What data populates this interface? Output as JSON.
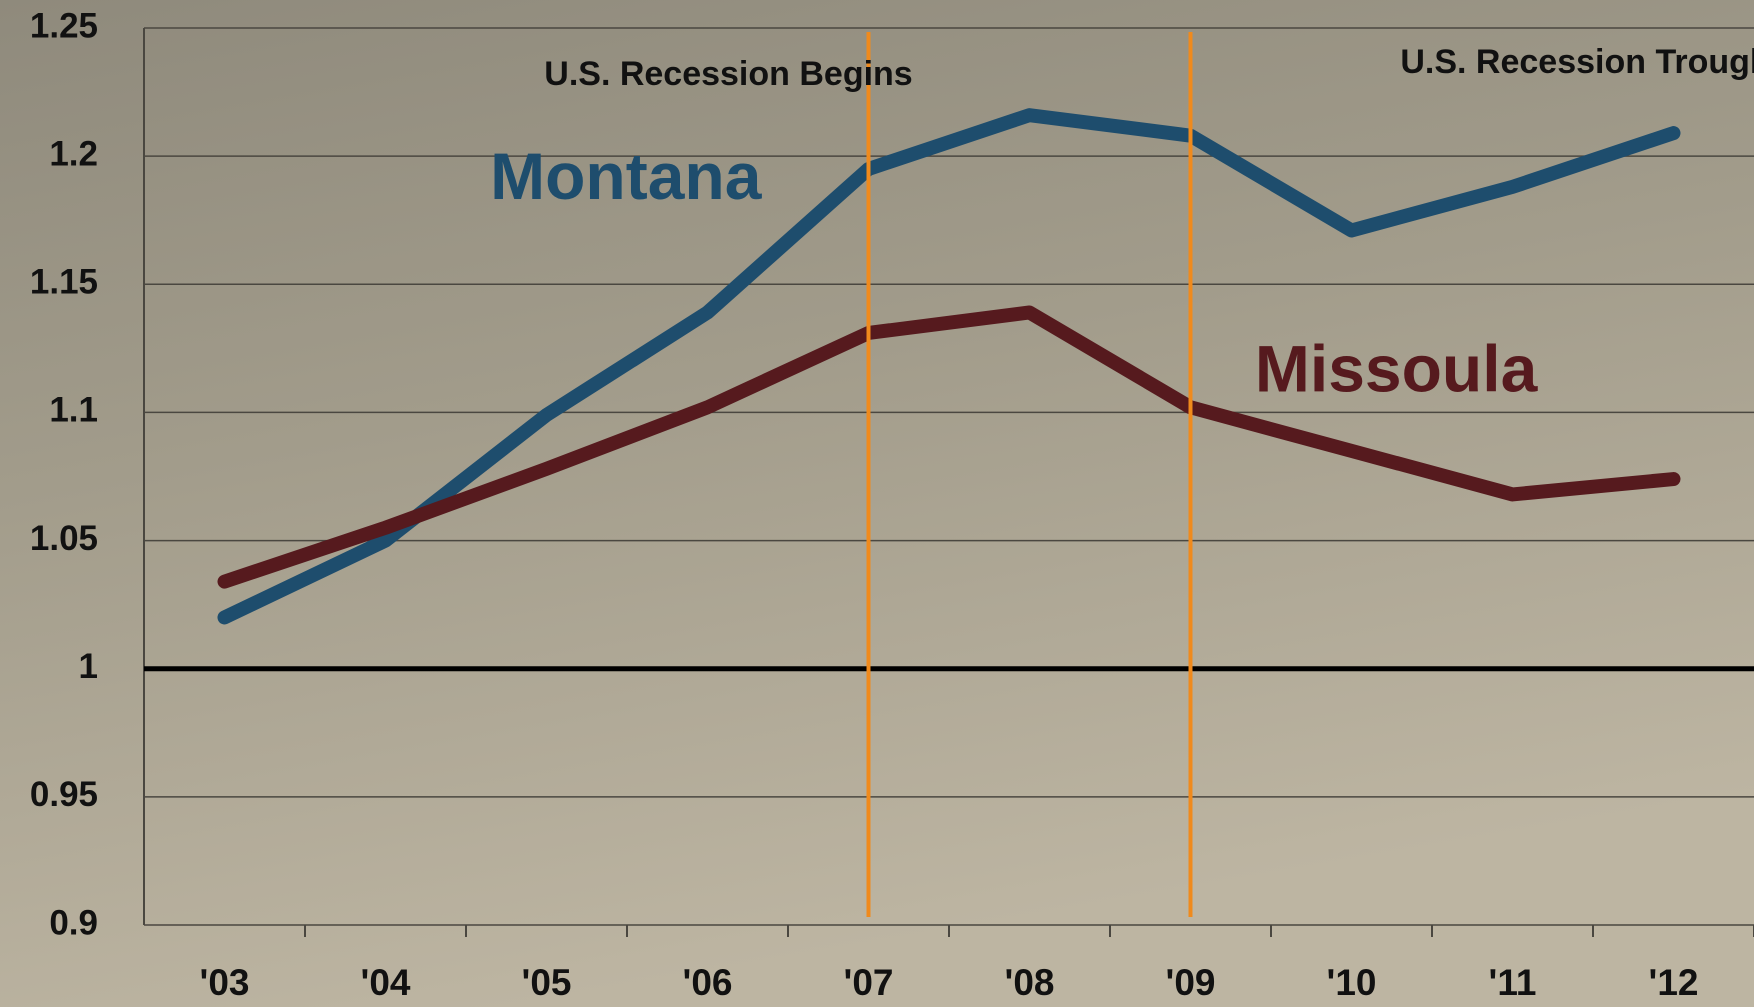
{
  "chart_data": {
    "type": "line",
    "categories": [
      "'03",
      "'04",
      "'05",
      "'06",
      "'07",
      "'08",
      "'09",
      "'10",
      "'11",
      "'12"
    ],
    "series": [
      {
        "name": "Montana",
        "color": "#1e4d6d",
        "values": [
          1.02,
          1.05,
          1.099,
          1.139,
          1.195,
          1.216,
          1.208,
          1.171,
          1.188,
          1.209
        ]
      },
      {
        "name": "Missoula",
        "color": "#561a1e",
        "values": [
          1.034,
          1.055,
          1.078,
          1.102,
          1.131,
          1.139,
          1.102,
          1.085,
          1.068,
          1.074
        ]
      }
    ],
    "ylim": [
      0.9,
      1.25
    ],
    "yticks": [
      0.9,
      0.95,
      1,
      1.05,
      1.1,
      1.15,
      1.2,
      1.25
    ],
    "grid": true,
    "hline": 1,
    "annotations": [
      {
        "text": "U.S. Recession Begins",
        "x": "'07",
        "color": "#f08a1c"
      },
      {
        "text": "U.S. Recession Trough",
        "x": "'09",
        "color": "#f08a1c"
      }
    ]
  }
}
